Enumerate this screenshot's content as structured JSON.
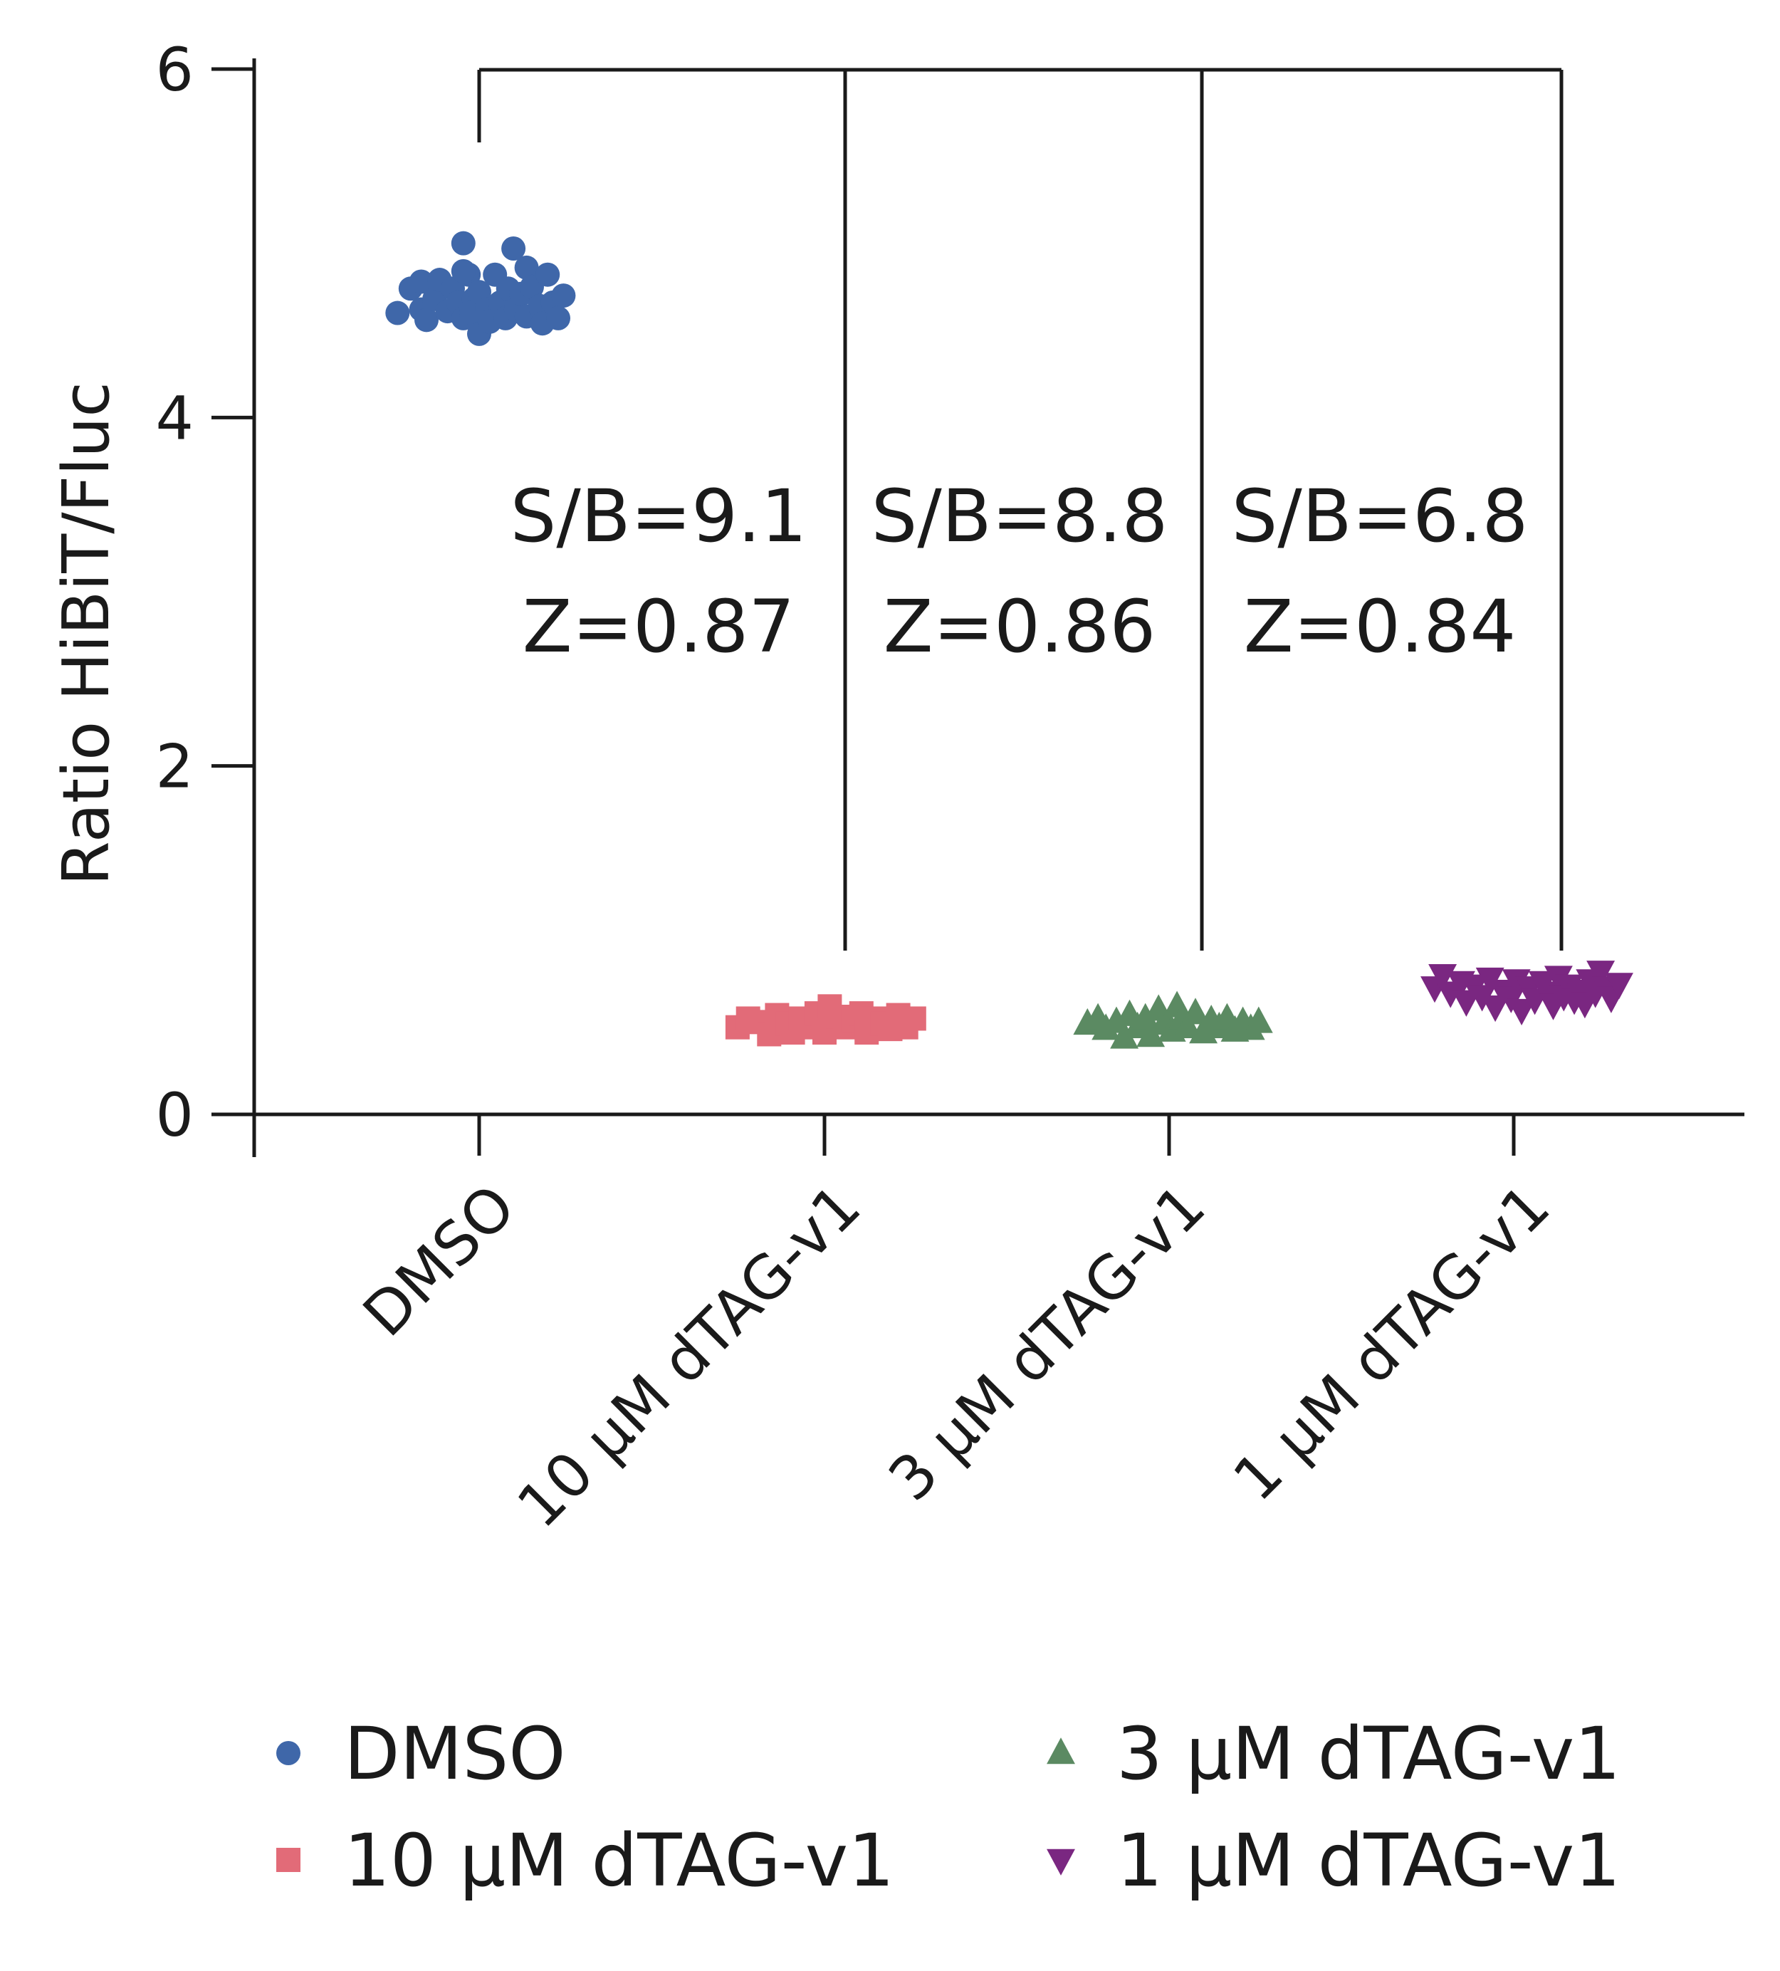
{
  "chart_data": {
    "type": "scatter",
    "title": "",
    "xlabel": "",
    "ylabel": "Ratio HiBiT/Fluc",
    "ylim": [
      0,
      6
    ],
    "yticks": [
      0,
      2,
      4,
      6
    ],
    "grid": false,
    "legend_position": "bottom",
    "categories": [
      "DMSO",
      "10 µM dTAG-v1",
      "3 µM dTAG-v1",
      "1 µM dTAG-v1"
    ],
    "series": [
      {
        "name": "DMSO",
        "category_index": 0,
        "marker": "circle",
        "color": "#3f67a9",
        "points": [
          [
            -0.31,
            4.6
          ],
          [
            -0.26,
            4.74
          ],
          [
            -0.22,
            4.62
          ],
          [
            -0.22,
            4.78
          ],
          [
            -0.2,
            4.56
          ],
          [
            -0.17,
            4.68
          ],
          [
            -0.15,
            4.79
          ],
          [
            -0.12,
            4.61
          ],
          [
            -0.1,
            4.74
          ],
          [
            -0.08,
            4.66
          ],
          [
            -0.06,
            4.57
          ],
          [
            -0.04,
            4.82
          ],
          [
            -0.02,
            4.68
          ],
          [
            -0.06,
            4.84
          ],
          [
            -0.03,
            4.6
          ],
          [
            0.0,
            4.72
          ],
          [
            0.03,
            4.62
          ],
          [
            -0.06,
            5.0
          ],
          [
            0.0,
            4.48
          ],
          [
            0.04,
            4.55
          ],
          [
            0.06,
            4.82
          ],
          [
            0.08,
            4.66
          ],
          [
            0.1,
            4.57
          ],
          [
            0.11,
            4.74
          ],
          [
            0.13,
            4.97
          ],
          [
            0.14,
            4.62
          ],
          [
            0.16,
            4.71
          ],
          [
            0.18,
            4.86
          ],
          [
            0.18,
            4.58
          ],
          [
            0.2,
            4.75
          ],
          [
            0.23,
            4.64
          ],
          [
            0.24,
            4.54
          ],
          [
            0.26,
            4.82
          ],
          [
            0.28,
            4.66
          ],
          [
            0.3,
            4.57
          ],
          [
            0.32,
            4.7
          ]
        ]
      },
      {
        "name": "10 µM dTAG-v1",
        "category_index": 1,
        "marker": "square",
        "color": "#e26b78",
        "points": [
          [
            -0.33,
            0.5
          ],
          [
            -0.29,
            0.55
          ],
          [
            -0.25,
            0.53
          ],
          [
            -0.21,
            0.46
          ],
          [
            -0.18,
            0.57
          ],
          [
            -0.14,
            0.52
          ],
          [
            -0.12,
            0.47
          ],
          [
            -0.09,
            0.55
          ],
          [
            -0.05,
            0.5
          ],
          [
            -0.03,
            0.58
          ],
          [
            0.0,
            0.54
          ],
          [
            0.0,
            0.47
          ],
          [
            0.02,
            0.62
          ],
          [
            0.05,
            0.56
          ],
          [
            0.08,
            0.5
          ],
          [
            0.11,
            0.54
          ],
          [
            0.14,
            0.58
          ],
          [
            0.16,
            0.47
          ],
          [
            0.19,
            0.55
          ],
          [
            0.22,
            0.52
          ],
          [
            0.25,
            0.49
          ],
          [
            0.28,
            0.57
          ],
          [
            0.31,
            0.5
          ],
          [
            0.34,
            0.55
          ]
        ]
      },
      {
        "name": "3 µM dTAG-v1",
        "category_index": 2,
        "marker": "triangle-up",
        "color": "#5b8a62",
        "points": [
          [
            -0.31,
            0.52
          ],
          [
            -0.27,
            0.55
          ],
          [
            -0.24,
            0.49
          ],
          [
            -0.2,
            0.53
          ],
          [
            -0.17,
            0.44
          ],
          [
            -0.15,
            0.57
          ],
          [
            -0.12,
            0.5
          ],
          [
            -0.09,
            0.55
          ],
          [
            -0.07,
            0.45
          ],
          [
            -0.04,
            0.6
          ],
          [
            -0.02,
            0.52
          ],
          [
            0.01,
            0.48
          ],
          [
            0.03,
            0.62
          ],
          [
            0.05,
            0.55
          ],
          [
            0.07,
            0.5
          ],
          [
            0.1,
            0.58
          ],
          [
            0.13,
            0.47
          ],
          [
            0.16,
            0.54
          ],
          [
            0.19,
            0.5
          ],
          [
            0.22,
            0.55
          ],
          [
            0.25,
            0.48
          ],
          [
            0.28,
            0.53
          ],
          [
            0.31,
            0.49
          ],
          [
            0.34,
            0.53
          ]
        ]
      },
      {
        "name": "1 µM dTAG-v1",
        "category_index": 3,
        "marker": "triangle-down",
        "color": "#7a2781",
        "points": [
          [
            -0.3,
            0.73
          ],
          [
            -0.27,
            0.8
          ],
          [
            -0.24,
            0.7
          ],
          [
            -0.2,
            0.76
          ],
          [
            -0.18,
            0.65
          ],
          [
            -0.15,
            0.74
          ],
          [
            -0.12,
            0.68
          ],
          [
            -0.09,
            0.78
          ],
          [
            -0.07,
            0.62
          ],
          [
            -0.04,
            0.71
          ],
          [
            -0.01,
            0.67
          ],
          [
            0.01,
            0.77
          ],
          [
            0.03,
            0.6
          ],
          [
            0.06,
            0.73
          ],
          [
            0.08,
            0.66
          ],
          [
            0.11,
            0.76
          ],
          [
            0.13,
            0.7
          ],
          [
            0.15,
            0.63
          ],
          [
            0.17,
            0.79
          ],
          [
            0.19,
            0.68
          ],
          [
            0.21,
            0.74
          ],
          [
            0.23,
            0.66
          ],
          [
            0.25,
            0.71
          ],
          [
            0.27,
            0.64
          ],
          [
            0.29,
            0.77
          ],
          [
            0.31,
            0.7
          ],
          [
            0.33,
            0.82
          ],
          [
            0.35,
            0.73
          ],
          [
            0.37,
            0.67
          ],
          [
            0.4,
            0.75
          ]
        ]
      }
    ],
    "comparisons": [
      {
        "from": 0,
        "to": 1,
        "sb": "S/B=9.1",
        "z": "Z=0.87"
      },
      {
        "from": 0,
        "to": 2,
        "sb": "S/B=8.8",
        "z": "Z=0.86"
      },
      {
        "from": 0,
        "to": 3,
        "sb": "S/B=6.8",
        "z": "Z=0.84"
      }
    ],
    "legend": [
      {
        "label": "DMSO",
        "marker": "circle",
        "color": "#3f67a9"
      },
      {
        "label": "10 µM dTAG-v1",
        "marker": "square",
        "color": "#e26b78"
      },
      {
        "label": "3 µM dTAG-v1",
        "marker": "triangle-up",
        "color": "#5b8a62"
      },
      {
        "label": "1 µM dTAG-v1",
        "marker": "triangle-down",
        "color": "#7a2781"
      }
    ]
  }
}
